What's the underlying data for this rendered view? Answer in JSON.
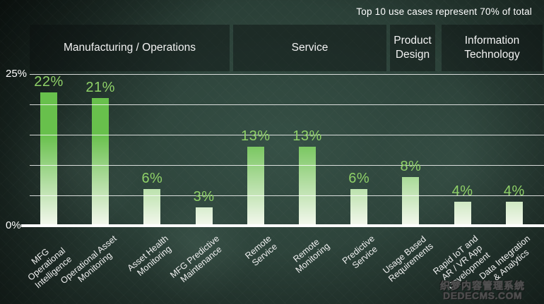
{
  "title": "Top 10 use cases represent 70% of total",
  "y_axis": {
    "top": "25%",
    "bottom": "0%"
  },
  "watermark": {
    "line1": "织梦内容管理系统",
    "line2": "DEDECMS.COM"
  },
  "colors": {
    "bar_green": "#68c04c",
    "bar_pale": "#f4f8ee",
    "value_label_green": "#8fd168",
    "grid_line": "#ffffff",
    "header_text": "#f2f2f2",
    "background": "#24362f"
  },
  "chart_data": {
    "type": "bar",
    "title": "Top 10 use cases represent 70% of total",
    "xlabel": "",
    "ylabel": "",
    "ylim": [
      0,
      25
    ],
    "ytick_interval_pct": 5,
    "yticks_labeled": [
      "25%",
      "0%"
    ],
    "grid": true,
    "legend": false,
    "groups": [
      {
        "label": "Manufacturing / Operations",
        "bar_indexes": [
          0,
          1,
          2,
          3
        ]
      },
      {
        "label": "Service",
        "bar_indexes": [
          4,
          5,
          6
        ]
      },
      {
        "label": "Product\nDesign",
        "bar_indexes": [
          7
        ]
      },
      {
        "label": "Information\nTechnology",
        "bar_indexes": [
          8,
          9
        ]
      }
    ],
    "categories": [
      "MFG Operational\nIntelligence",
      "Operational Asset\nMonitoring",
      "Asset Health\nMonitoring",
      "MFG Predictive\nMaintenance",
      "Remote\nService",
      "Remote\nMonitoring",
      "Predictive\nService",
      "Usage Based\nRequirements",
      "Rapid IoT and\nAR / VR App\nDevelopment",
      "Data Integration\n& Analytics"
    ],
    "values": [
      22,
      21,
      6,
      3,
      13,
      13,
      6,
      8,
      4,
      4
    ],
    "bar_labels": [
      "22%",
      "21%",
      "6%",
      "3%",
      "13%",
      "13%",
      "6%",
      "8%",
      "4%",
      "4%"
    ]
  }
}
